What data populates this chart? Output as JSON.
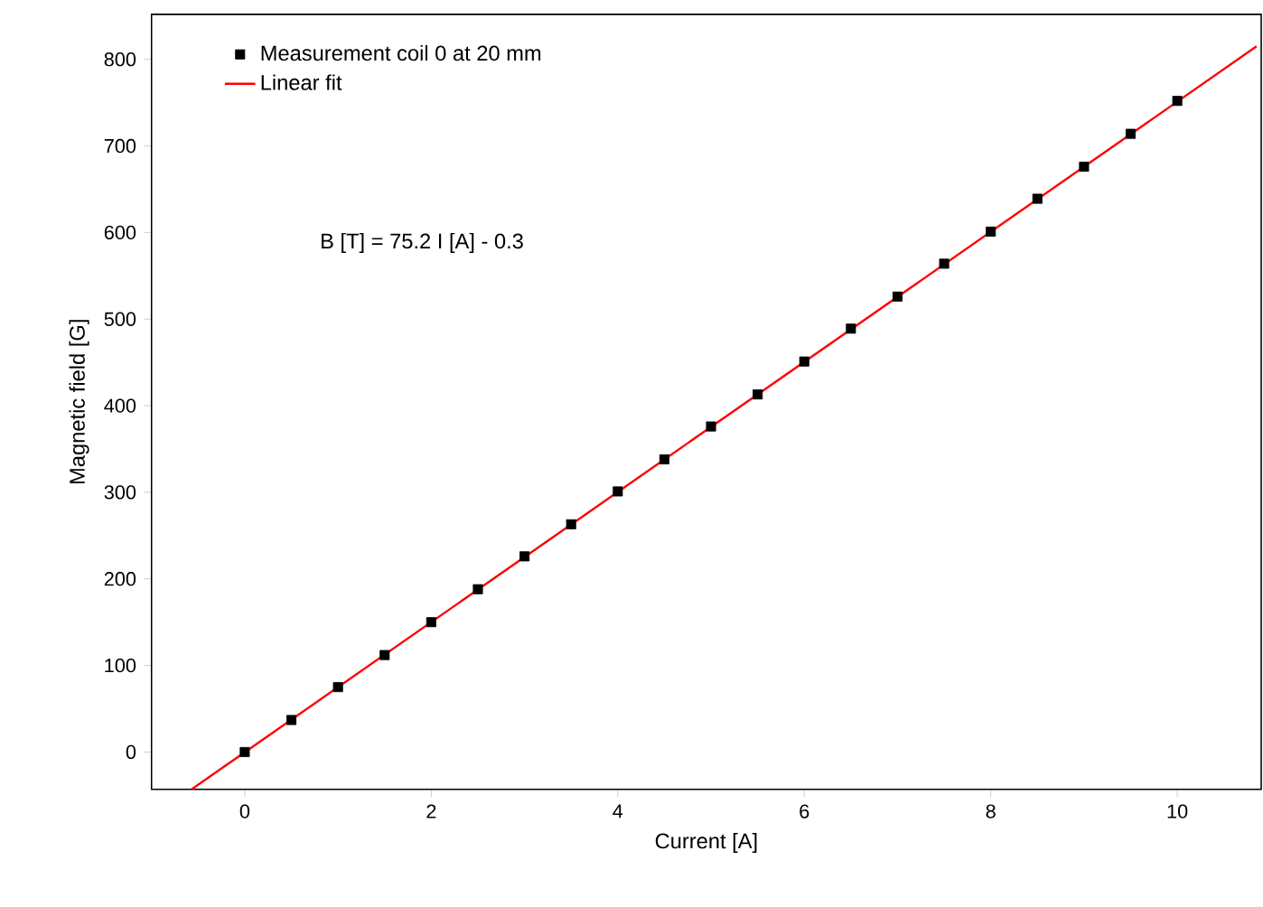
{
  "chart_data": {
    "type": "scatter",
    "xlabel": "Current [A]",
    "ylabel": "Magnetic field [G]",
    "xlim": [
      -1,
      10.9
    ],
    "ylim": [
      -43,
      852
    ],
    "xticks": [
      0,
      2,
      4,
      6,
      8,
      10
    ],
    "yticks": [
      0,
      100,
      200,
      300,
      400,
      500,
      600,
      700,
      800
    ],
    "grid": false,
    "legend": "top left",
    "marker": "square",
    "annotations": [
      "B [T] = 75.2 I [A] - 0.3"
    ],
    "series": [
      {
        "name": "Measurement coil 0 at 20 mm",
        "color": "#000000",
        "x": [
          0,
          0.5,
          1,
          1.5,
          2,
          2.5,
          3,
          3.5,
          4,
          4.5,
          5,
          5.5,
          6,
          6.5,
          7,
          7.5,
          8,
          8.5,
          9,
          9.5,
          10
        ],
        "values": [
          0,
          37,
          75,
          112,
          150,
          188,
          226,
          263,
          301,
          338,
          376,
          413,
          451,
          489,
          526,
          564,
          601,
          639,
          676,
          714,
          752
        ]
      },
      {
        "name": "Linear fit",
        "type": "line",
        "marker": "none",
        "color": "#ff0000",
        "x": [
          -0.57,
          10.85
        ],
        "values": [
          -43,
          815
        ]
      }
    ]
  }
}
